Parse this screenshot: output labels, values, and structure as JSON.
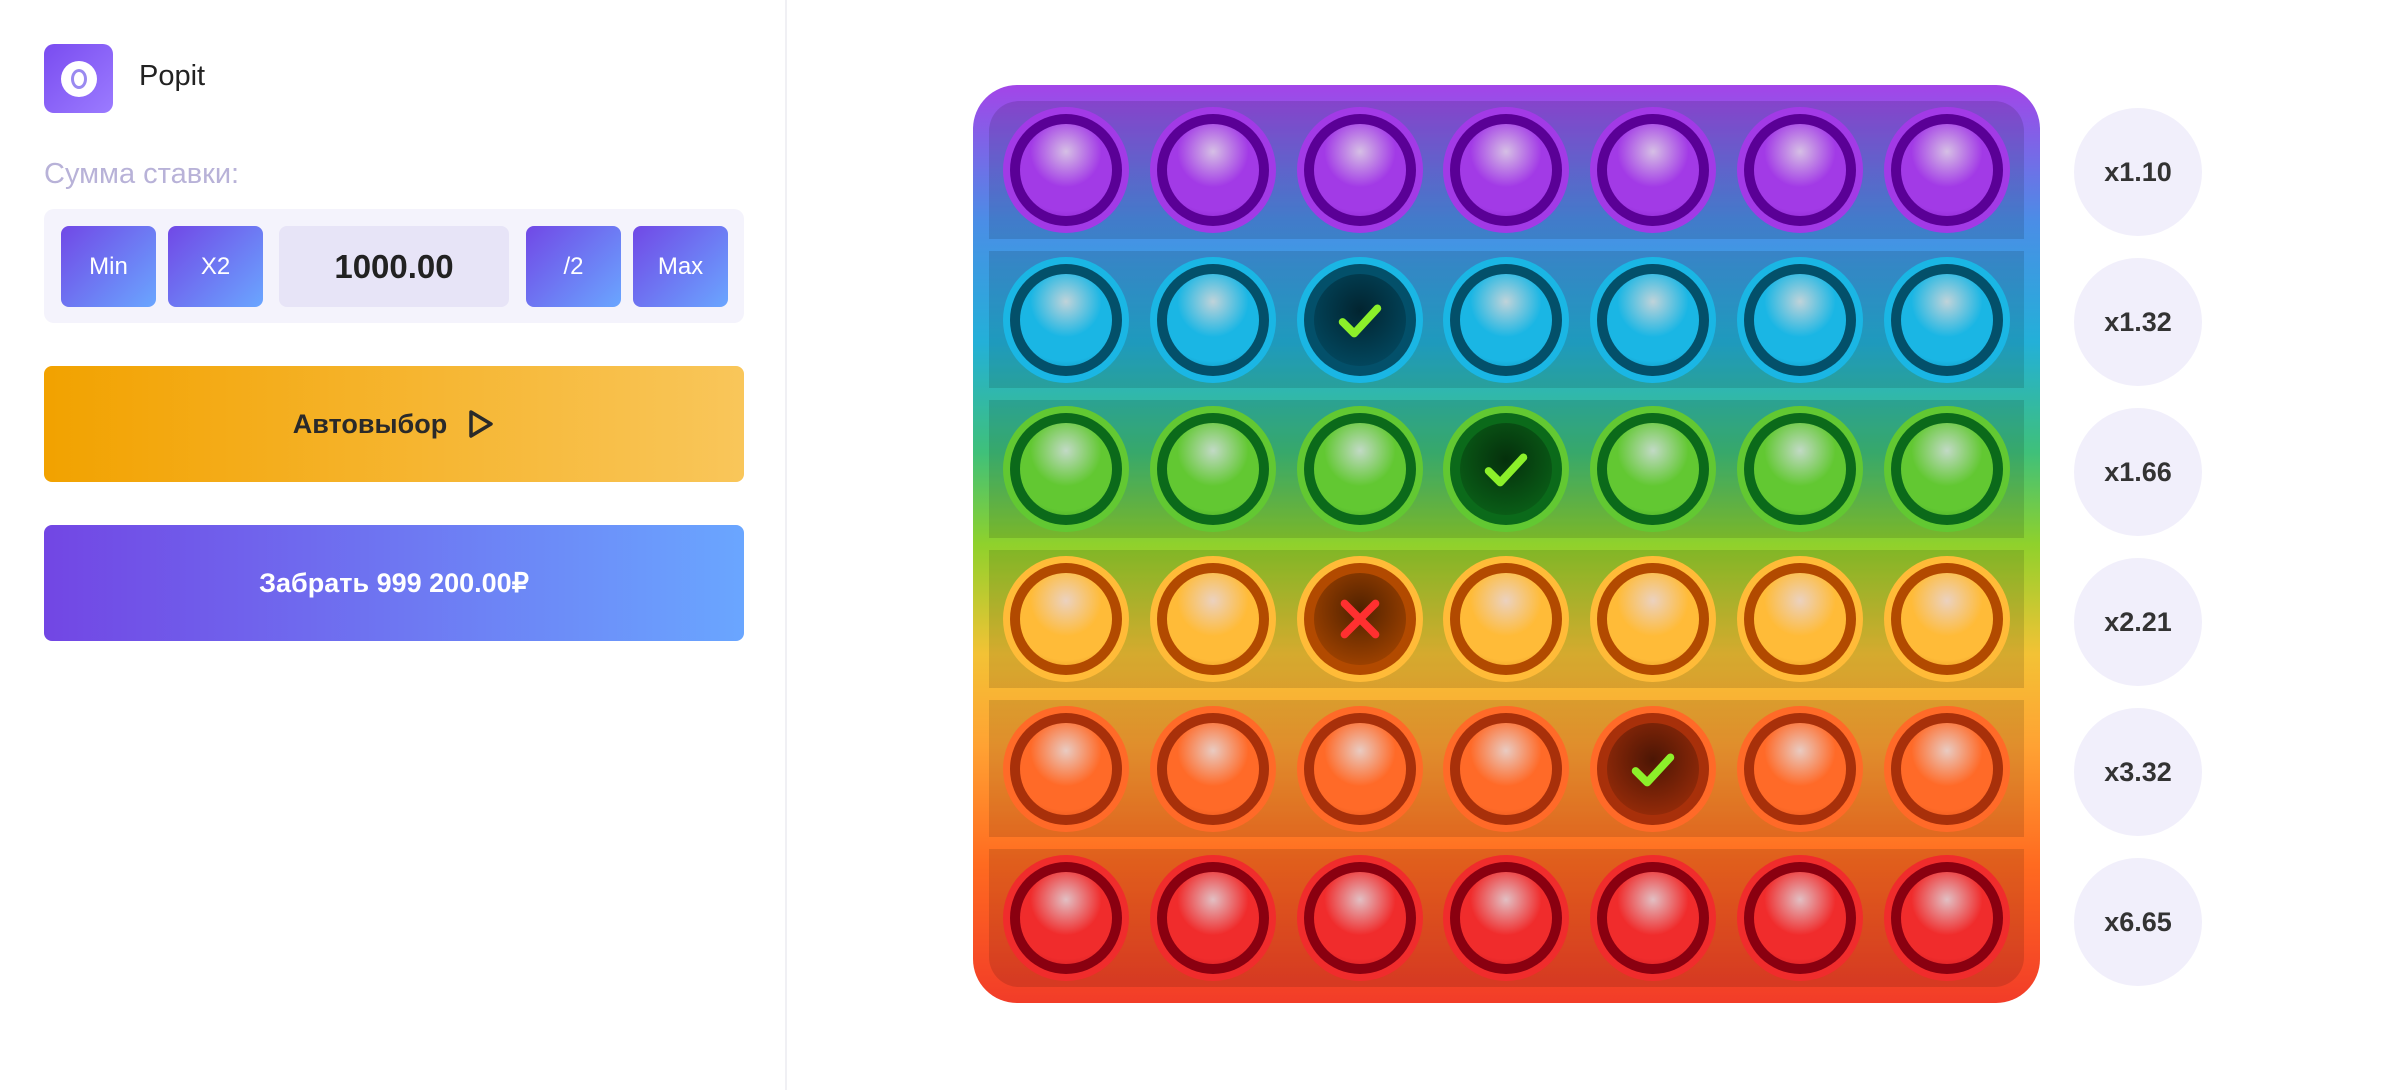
{
  "app": {
    "title": "Popit",
    "logo_icon": "popit-logo-icon"
  },
  "bet": {
    "label": "Сумма ставки:",
    "min_label": "Min",
    "x2_label": "X2",
    "amount": "1000.00",
    "half_label": "/2",
    "max_label": "Max"
  },
  "actions": {
    "autoselect_label": "Автовыбор",
    "cashout_label": "Забрать 999 200.00₽"
  },
  "board": {
    "rows": [
      {
        "color": "#a23ae6",
        "dark": "#5a0096",
        "multiplier": "x1.10",
        "cells": [
          "closed",
          "closed",
          "closed",
          "closed",
          "closed",
          "closed",
          "closed"
        ]
      },
      {
        "color": "#1ab6e4",
        "dark": "#03506a",
        "multiplier": "x1.32",
        "cells": [
          "closed",
          "closed",
          "win",
          "closed",
          "closed",
          "closed",
          "closed"
        ]
      },
      {
        "color": "#62c832",
        "dark": "#0b6a1a",
        "multiplier": "x1.66",
        "cells": [
          "closed",
          "closed",
          "closed",
          "win",
          "closed",
          "closed",
          "closed"
        ]
      },
      {
        "color": "#ffbb38",
        "dark": "#b24a00",
        "multiplier": "x2.21",
        "cells": [
          "closed",
          "closed",
          "lose",
          "closed",
          "closed",
          "closed",
          "closed"
        ]
      },
      {
        "color": "#ff6a28",
        "dark": "#a8300a",
        "multiplier": "x3.32",
        "cells": [
          "closed",
          "closed",
          "closed",
          "closed",
          "win",
          "closed",
          "closed"
        ]
      },
      {
        "color": "#f02c2c",
        "dark": "#8a0010",
        "multiplier": "x6.65",
        "cells": [
          "closed",
          "closed",
          "closed",
          "closed",
          "closed",
          "closed",
          "closed"
        ]
      }
    ]
  },
  "colors": {
    "check": "#8cf02a",
    "cross": "#ff3030"
  }
}
